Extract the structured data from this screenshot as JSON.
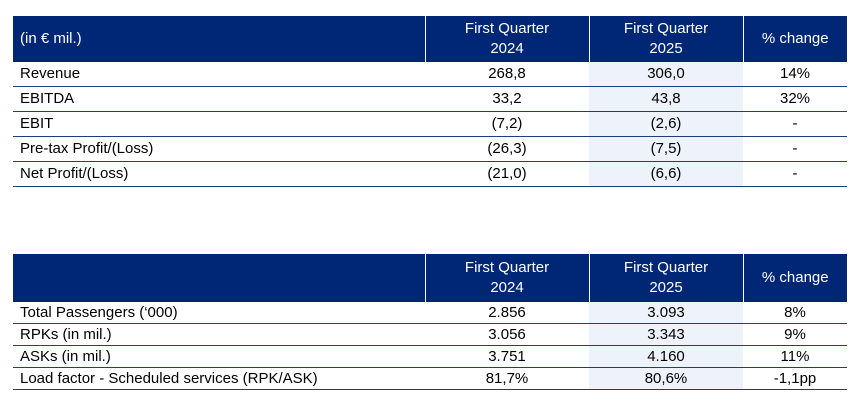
{
  "table1": {
    "headers": {
      "label": "(in € mil.)",
      "col1_line1": "First Quarter",
      "col1_line2": "2024",
      "col2_line1": "First Quarter",
      "col2_line2": "2025",
      "col3": "% change"
    },
    "rows": [
      {
        "label": "Revenue",
        "q2024": "268,8",
        "q2025": "306,0",
        "change": "14%"
      },
      {
        "label": "EBITDA",
        "q2024": "33,2",
        "q2025": "43,8",
        "change": "32%"
      },
      {
        "label": "EBIT",
        "q2024": "(7,2)",
        "q2025": "(2,6)",
        "change": "-"
      },
      {
        "label": "Pre-tax Profit/(Loss)",
        "q2024": "(26,3)",
        "q2025": "(7,5)",
        "change": "-"
      },
      {
        "label": "Net Profit/(Loss)",
        "q2024": "(21,0)",
        "q2025": "(6,6)",
        "change": "-"
      }
    ]
  },
  "table2": {
    "headers": {
      "col1_line1": "First Quarter",
      "col1_line2": "2024",
      "col2_line1": "First Quarter",
      "col2_line2": "2025",
      "col3": "% change"
    },
    "rows": [
      {
        "label": "Total Passengers (‘000)",
        "q2024": "2.856",
        "q2025": "3.093",
        "change": "8%"
      },
      {
        "label": "RPKs (in mil.)",
        "q2024": "3.056",
        "q2025": "3.343",
        "change": "9%"
      },
      {
        "label": "ASKs (in mil.)",
        "q2024": "3.751",
        "q2025": "4.160",
        "change": "11%"
      },
      {
        "label": "Load factor - Scheduled services (RPK/ASK)",
        "q2024": "81,7%",
        "q2025": "80,6%",
        "change": "-1,1pp"
      }
    ]
  },
  "colors": {
    "header_bg": "#002776",
    "header_text": "#ffffff",
    "highlight_column": "#eef2fa",
    "row_rule": "#1f3f7a"
  }
}
